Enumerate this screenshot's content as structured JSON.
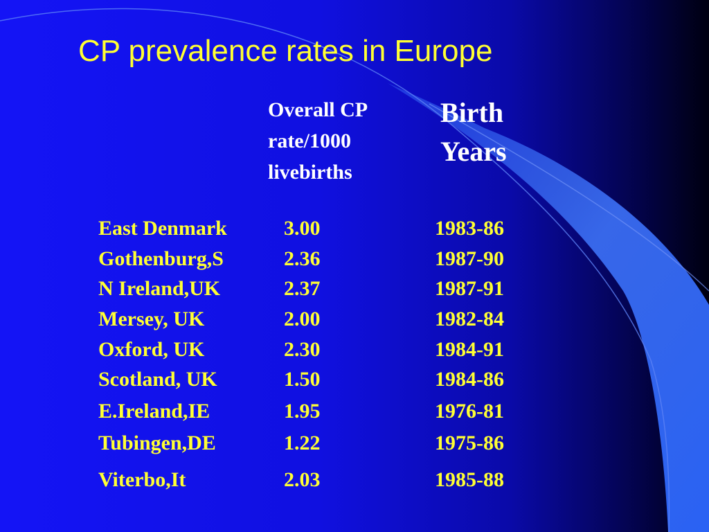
{
  "slide": {
    "title": "CP prevalence rates in Europe"
  },
  "table": {
    "header_rate": [
      "Overall CP",
      "rate/1000",
      "livebirths"
    ],
    "header_years": [
      "Birth",
      "Years"
    ],
    "rows": [
      {
        "region": "East Denmark",
        "rate": "3.00",
        "years": "1983-86"
      },
      {
        "region": "Gothenburg,S",
        "rate": "2.36",
        "years": "1987-90"
      },
      {
        "region": "N Ireland,UK",
        "rate": "2.37",
        "years": "1987-91"
      },
      {
        "region": "Mersey, UK",
        "rate": "2.00",
        "years": "1982-84"
      },
      {
        "region": "Oxford, UK",
        "rate": "2.30",
        "years": "1984-91"
      },
      {
        "region": "Scotland, UK",
        "rate": "1.50",
        "years": "1984-86"
      },
      {
        "region": "E.Ireland,IE",
        "rate": "1.95",
        "years": "1976-81"
      },
      {
        "region": "Tubingen,DE",
        "rate": "1.22",
        "years": "1975-86"
      },
      {
        "region": "Viterbo,It",
        "rate": "2.03",
        "years": "1985-88"
      }
    ]
  },
  "colors": {
    "background": "#1414f6",
    "title": "#ffff33",
    "header": "#ffffff",
    "body_text": "#ffff33",
    "swoosh": "#3a6cf0"
  }
}
